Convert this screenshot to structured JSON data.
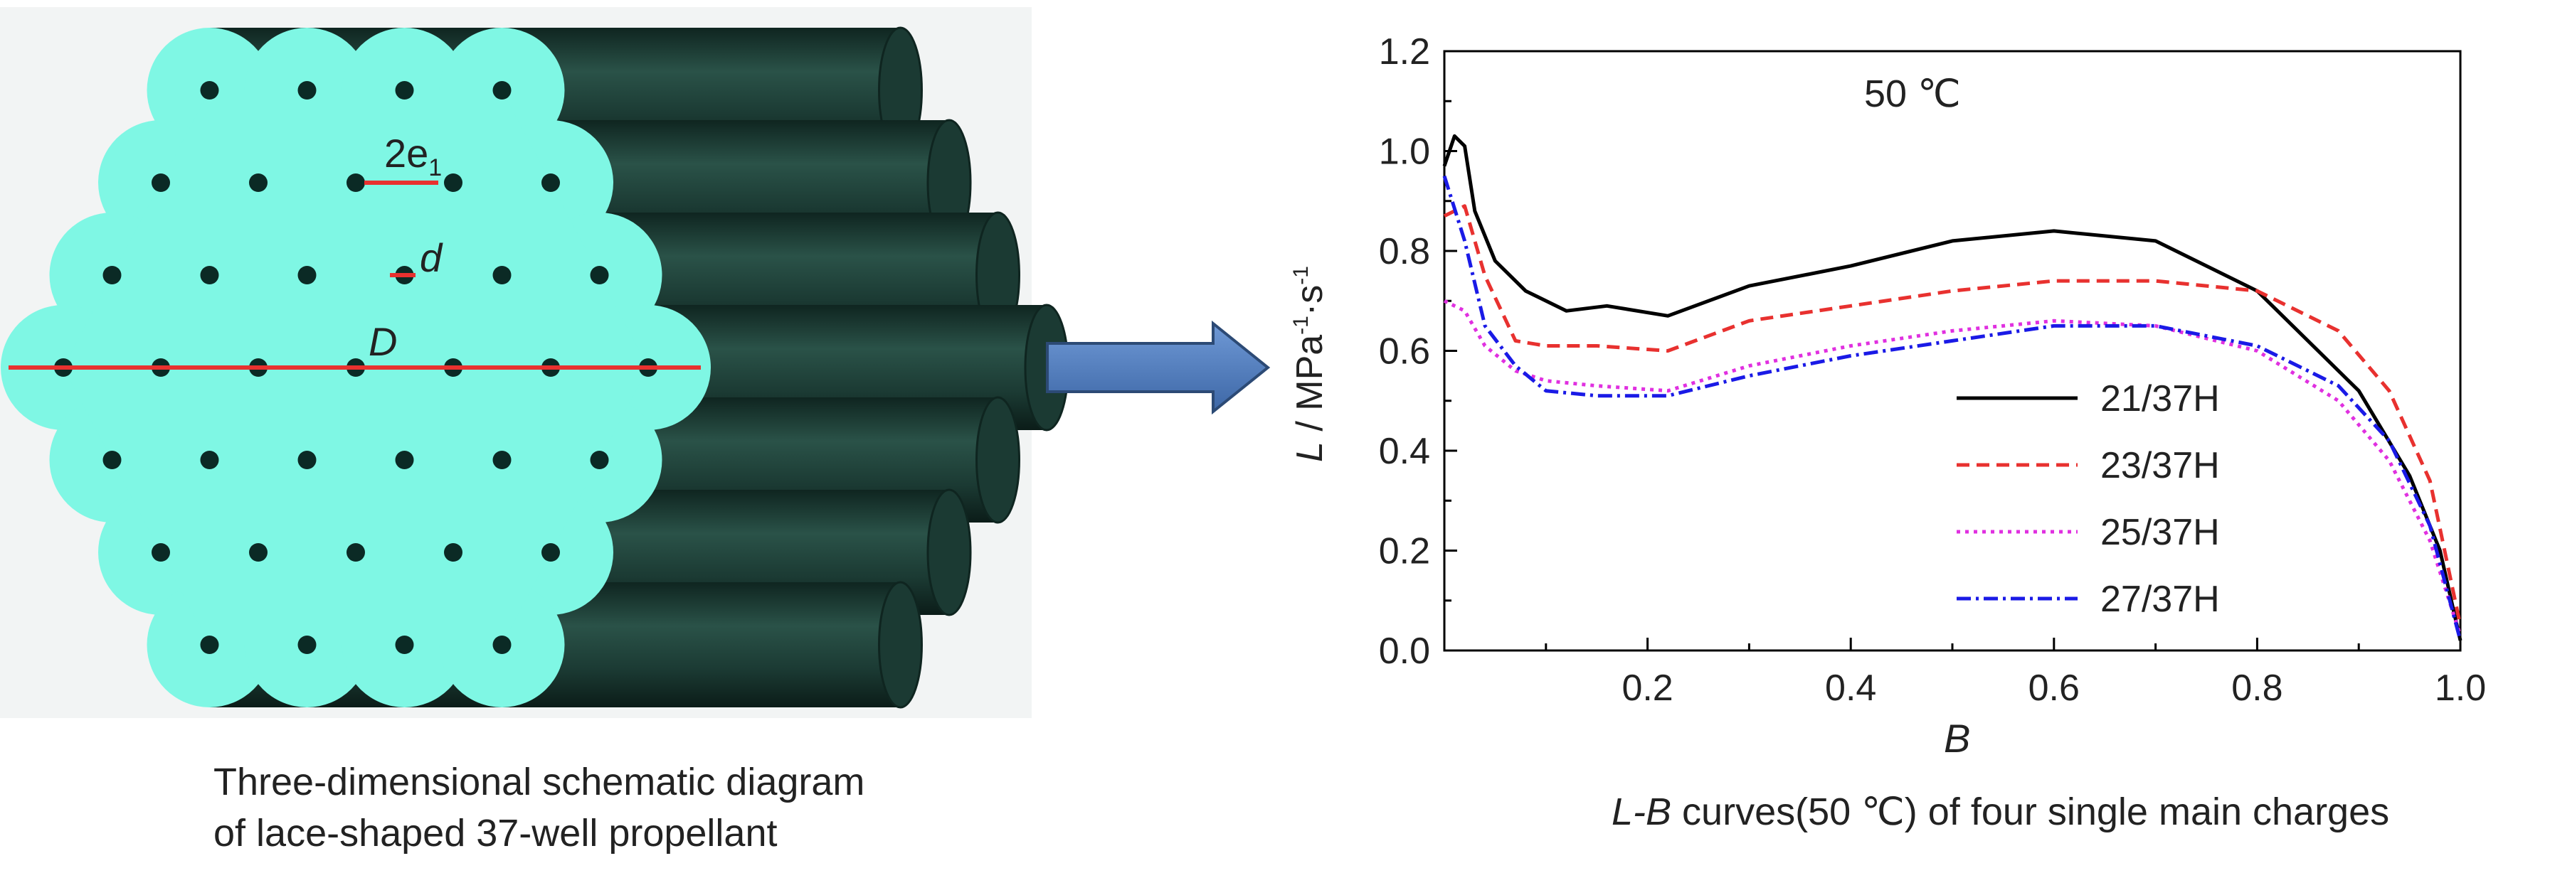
{
  "schematic": {
    "labels": {
      "two_e": "2e",
      "two_e_sub": "1",
      "d": "d",
      "D": "D"
    },
    "caption_line1": "Three-dimensional schematic diagram",
    "caption_line2": "of lace-shaped 37-well propellant",
    "colors": {
      "face": "#7ff7e4",
      "cylinder": "#1b3a33",
      "cylinder_dark": "#0f2520",
      "pore": "#0b2a25",
      "marker": "#e8312f"
    }
  },
  "arrow": {
    "color": "#4a78b8",
    "border": "#2c4a75"
  },
  "chart_data": {
    "type": "line",
    "annotation": "50 ℃",
    "xlabel_main": "B",
    "ylabel_sym": "L",
    "ylabel_unit": " / MPa",
    "ylabel_exp1": "-1",
    "ylabel_mid": "·s",
    "ylabel_exp2": "-1",
    "caption_sym": "L-B",
    "caption_rest": " curves(50 ℃) of four single main charges",
    "xlim": [
      0,
      1.0
    ],
    "ylim": [
      0,
      1.2
    ],
    "xticks": [
      "0.2",
      "0.4",
      "0.6",
      "0.8",
      "1.0"
    ],
    "yticks": [
      "0.0",
      "0.2",
      "0.4",
      "0.6",
      "0.8",
      "1.0",
      "1.2"
    ],
    "legend_position": "lower-right",
    "series": [
      {
        "name": "21/37H",
        "color": "#000000",
        "dash": "",
        "points": [
          [
            0.0,
            0.97
          ],
          [
            0.01,
            1.03
          ],
          [
            0.02,
            1.01
          ],
          [
            0.03,
            0.88
          ],
          [
            0.05,
            0.78
          ],
          [
            0.08,
            0.72
          ],
          [
            0.12,
            0.68
          ],
          [
            0.16,
            0.69
          ],
          [
            0.22,
            0.67
          ],
          [
            0.3,
            0.73
          ],
          [
            0.4,
            0.77
          ],
          [
            0.5,
            0.82
          ],
          [
            0.6,
            0.84
          ],
          [
            0.7,
            0.82
          ],
          [
            0.8,
            0.72
          ],
          [
            0.9,
            0.52
          ],
          [
            0.95,
            0.35
          ],
          [
            0.98,
            0.2
          ],
          [
            1.0,
            0.02
          ]
        ]
      },
      {
        "name": "23/37H",
        "color": "#e8312f",
        "dash": "18,10",
        "points": [
          [
            0.0,
            0.87
          ],
          [
            0.02,
            0.89
          ],
          [
            0.04,
            0.75
          ],
          [
            0.07,
            0.62
          ],
          [
            0.1,
            0.61
          ],
          [
            0.15,
            0.61
          ],
          [
            0.22,
            0.6
          ],
          [
            0.3,
            0.66
          ],
          [
            0.4,
            0.69
          ],
          [
            0.5,
            0.72
          ],
          [
            0.6,
            0.74
          ],
          [
            0.7,
            0.74
          ],
          [
            0.8,
            0.72
          ],
          [
            0.88,
            0.64
          ],
          [
            0.93,
            0.52
          ],
          [
            0.97,
            0.34
          ],
          [
            1.0,
            0.05
          ]
        ]
      },
      {
        "name": "25/37H",
        "color": "#e030e0",
        "dash": "5,7",
        "points": [
          [
            0.0,
            0.7
          ],
          [
            0.02,
            0.68
          ],
          [
            0.04,
            0.61
          ],
          [
            0.07,
            0.56
          ],
          [
            0.1,
            0.54
          ],
          [
            0.15,
            0.53
          ],
          [
            0.22,
            0.52
          ],
          [
            0.3,
            0.57
          ],
          [
            0.4,
            0.61
          ],
          [
            0.5,
            0.64
          ],
          [
            0.6,
            0.66
          ],
          [
            0.7,
            0.65
          ],
          [
            0.8,
            0.6
          ],
          [
            0.88,
            0.5
          ],
          [
            0.93,
            0.38
          ],
          [
            0.97,
            0.22
          ],
          [
            1.0,
            0.03
          ]
        ]
      },
      {
        "name": "27/37H",
        "color": "#1a1ae6",
        "dash": "20,7,4,7",
        "points": [
          [
            0.0,
            0.95
          ],
          [
            0.02,
            0.82
          ],
          [
            0.04,
            0.65
          ],
          [
            0.07,
            0.57
          ],
          [
            0.1,
            0.52
          ],
          [
            0.15,
            0.51
          ],
          [
            0.22,
            0.51
          ],
          [
            0.3,
            0.55
          ],
          [
            0.4,
            0.59
          ],
          [
            0.5,
            0.62
          ],
          [
            0.6,
            0.65
          ],
          [
            0.7,
            0.65
          ],
          [
            0.8,
            0.61
          ],
          [
            0.88,
            0.53
          ],
          [
            0.93,
            0.42
          ],
          [
            0.97,
            0.25
          ],
          [
            1.0,
            0.02
          ]
        ]
      }
    ]
  }
}
